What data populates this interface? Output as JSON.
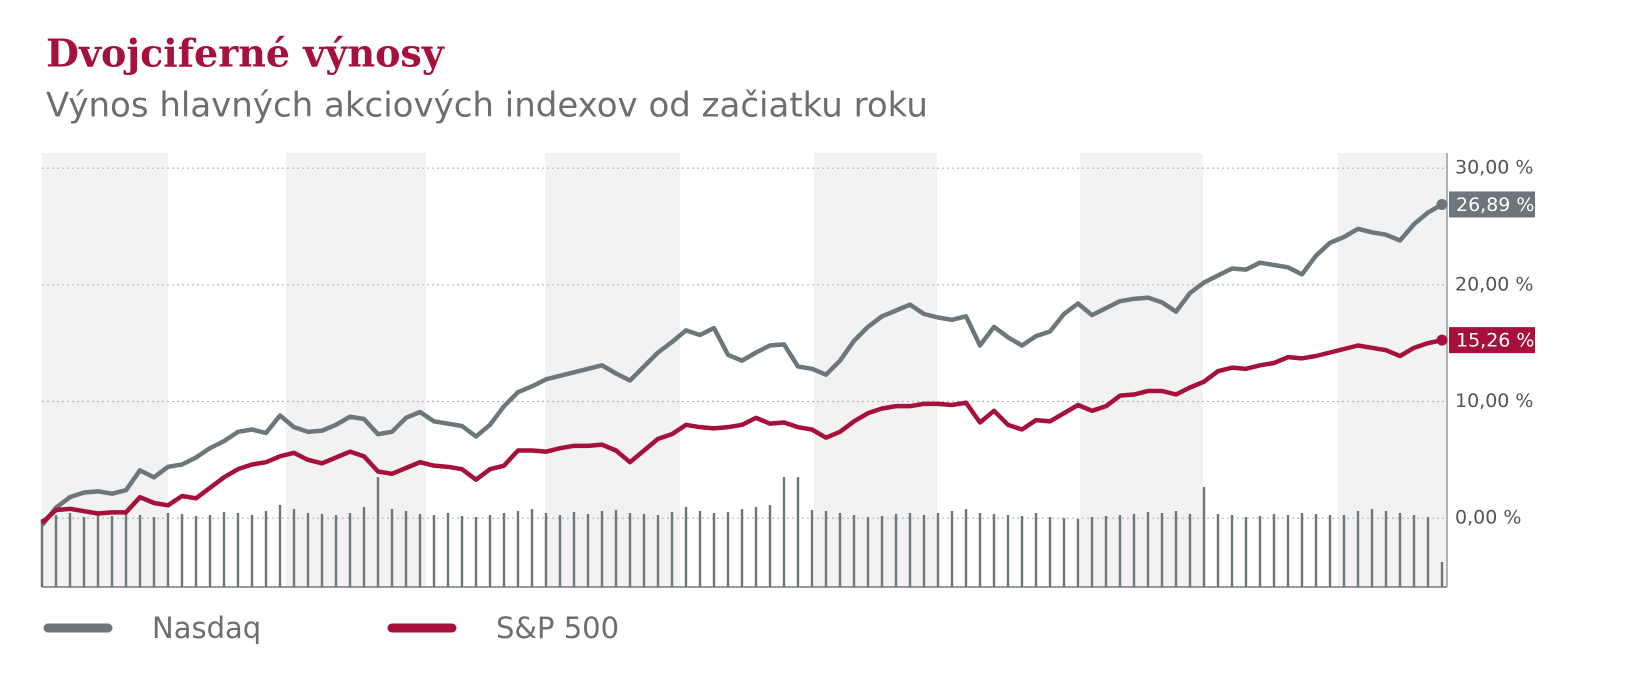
{
  "chart_data": {
    "type": "line",
    "title": "Dvojciferné výnosy",
    "subtitle": "Výnos hlavných akciových indexov od začiatku roku",
    "ylim": [
      -5.9,
      31.3
    ],
    "yticks": [
      {
        "value": 0,
        "label": "0,00 %"
      },
      {
        "value": 10,
        "label": "10,00 %"
      },
      {
        "value": 20,
        "label": "20,00 %"
      },
      {
        "value": 30,
        "label": "30,00 %"
      }
    ],
    "grid": true,
    "legend": "bottom-left",
    "series": [
      {
        "name": "Nasdaq",
        "color": "#6d767b",
        "end_label": "26,89 %",
        "values": [
          -0.6,
          0.9,
          1.8,
          2.2,
          2.3,
          2.1,
          2.4,
          4.1,
          3.5,
          4.4,
          4.6,
          5.2,
          6.0,
          6.6,
          7.4,
          7.6,
          7.3,
          8.8,
          7.8,
          7.4,
          7.5,
          8.0,
          8.7,
          8.5,
          7.2,
          7.4,
          8.6,
          9.1,
          8.3,
          8.1,
          7.9,
          7.0,
          8.0,
          9.6,
          10.8,
          11.3,
          11.9,
          12.2,
          12.5,
          12.8,
          13.1,
          12.4,
          11.8,
          13.0,
          14.2,
          15.1,
          16.1,
          15.7,
          16.3,
          14.0,
          13.5,
          14.2,
          14.8,
          14.9,
          13.0,
          12.8,
          12.3,
          13.5,
          15.2,
          16.4,
          17.3,
          17.8,
          18.3,
          17.5,
          17.2,
          17.0,
          17.3,
          14.8,
          16.4,
          15.5,
          14.8,
          15.6,
          16.0,
          17.5,
          18.4,
          17.4,
          18.0,
          18.6,
          18.8,
          18.9,
          18.5,
          17.7,
          19.3,
          20.2,
          20.8,
          21.4,
          21.3,
          21.9,
          21.7,
          21.5,
          20.9,
          22.5,
          23.6,
          24.1,
          24.8,
          24.5,
          24.3,
          23.8,
          25.2,
          26.2,
          26.89
        ]
      },
      {
        "name": "S&P 500",
        "color": "#a6113c",
        "end_label": "15,26 %",
        "values": [
          -0.4,
          0.7,
          0.8,
          0.6,
          0.4,
          0.5,
          0.5,
          1.8,
          1.3,
          1.1,
          1.9,
          1.7,
          2.6,
          3.5,
          4.2,
          4.6,
          4.8,
          5.3,
          5.6,
          5.0,
          4.7,
          5.2,
          5.7,
          5.3,
          4.0,
          3.8,
          4.3,
          4.8,
          4.5,
          4.4,
          4.2,
          3.3,
          4.2,
          4.5,
          5.8,
          5.8,
          5.7,
          6.0,
          6.2,
          6.2,
          6.3,
          5.8,
          4.8,
          5.8,
          6.8,
          7.2,
          8.0,
          7.8,
          7.7,
          7.8,
          8.0,
          8.6,
          8.1,
          8.2,
          7.8,
          7.6,
          6.9,
          7.4,
          8.3,
          9.0,
          9.4,
          9.6,
          9.6,
          9.8,
          9.8,
          9.7,
          9.9,
          8.2,
          9.2,
          8.0,
          7.6,
          8.4,
          8.3,
          9.0,
          9.7,
          9.2,
          9.6,
          10.5,
          10.6,
          10.9,
          10.9,
          10.6,
          11.2,
          11.7,
          12.6,
          12.9,
          12.8,
          13.1,
          13.3,
          13.8,
          13.7,
          13.9,
          14.2,
          14.5,
          14.8,
          14.6,
          14.4,
          13.9,
          14.6,
          15.0,
          15.26
        ]
      }
    ],
    "volume": {
      "color": "#6d767b",
      "values": [
        68,
        72,
        74,
        70,
        73,
        71,
        75,
        72,
        70,
        74,
        73,
        71,
        72,
        75,
        74,
        72,
        76,
        82,
        78,
        74,
        73,
        72,
        74,
        80,
        110,
        78,
        76,
        73,
        72,
        74,
        71,
        70,
        72,
        74,
        76,
        78,
        74,
        72,
        75,
        73,
        76,
        77,
        74,
        73,
        72,
        75,
        80,
        76,
        74,
        75,
        78,
        80,
        82,
        110,
        110,
        77,
        76,
        74,
        72,
        70,
        71,
        73,
        74,
        72,
        74,
        76,
        78,
        74,
        73,
        72,
        71,
        74,
        70,
        69,
        68,
        70,
        71,
        72,
        73,
        75,
        74,
        76,
        73,
        100,
        73,
        72,
        70,
        71,
        73,
        72,
        74,
        73,
        72,
        72,
        76,
        78,
        76,
        74,
        72,
        70,
        25
      ]
    }
  }
}
